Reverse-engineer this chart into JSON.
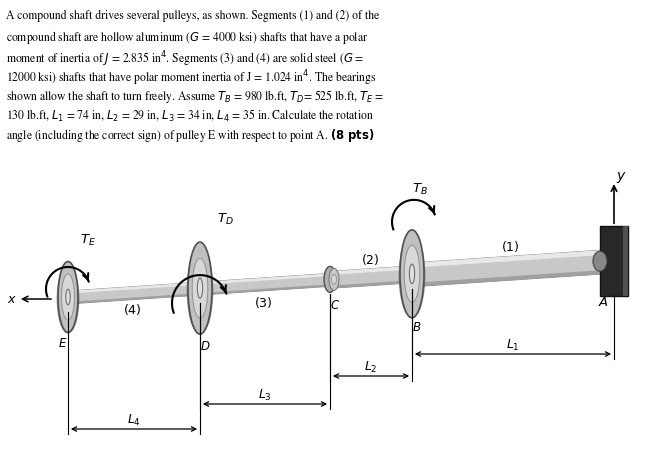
{
  "bg_color": "#ffffff",
  "text_color": "#000000",
  "text_lines": [
    "A compound shaft drives several pulleys, as shown. Segments (1) and (2) of the",
    "compound shaft are hollow aluminum ($G$ = 4000 ksi) shafts that have a polar",
    "moment of inertia of $J$ = 2.835 in$^4$. Segments (3) and (4) are solid steel ($G$ =",
    "12000 ksi) shafts that have polar moment inertia of J = 1.024 in$^4$. The bearings",
    "shown allow the shaft to turn freely. Assume $T_B$ = 980 lb.ft, $T_D$= 525 lb.ft, $T_E$ =",
    "130 lb.ft, $L_1$ = 74 in, $L_2$ = 29 in, $L_3$ = 34 in, $L_4$ = 35 in. Calculate the rotation",
    "angle (including the correct sign) of pulley E with respect to point A. (\\textbf{8 pts})"
  ],
  "shaft_gray": "#c0c0c0",
  "shaft_dark": "#888888",
  "shaft_light": "#e0e0e0",
  "disk_gray": "#b8b8b8",
  "disk_dark": "#404040",
  "disk_rim": "#505050",
  "wall_dark": "#303030",
  "wall_mid": "#606060"
}
